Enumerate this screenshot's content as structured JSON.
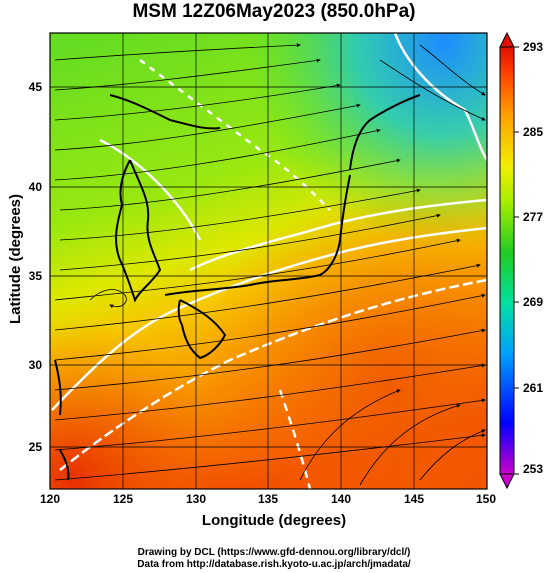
{
  "figure": {
    "title": "MSM 12Z06May2023 (850.0hPa)",
    "xlabel": "Longitude (degrees)",
    "ylabel": "Latitude  (degrees)",
    "credit_line1": "Drawing by DCL (https://www.gfd-dennou.org/library/dcl/)",
    "credit_line2": "Data from http://database.rish.kyoto-u.ac.jp/arch/jmadata/"
  },
  "axes": {
    "x_ticks": [
      "120",
      "125",
      "130",
      "135",
      "140",
      "145",
      "150"
    ],
    "y_ticks": [
      "25",
      "30",
      "35",
      "40",
      "45"
    ],
    "xlim": [
      120,
      150
    ],
    "ylim": [
      22.4,
      47.6
    ]
  },
  "colorbar": {
    "ticks": [
      "293",
      "285",
      "277",
      "269",
      "261",
      "253"
    ],
    "range": [
      253,
      293
    ],
    "colors": [
      "#cc00cc",
      "#0000ff",
      "#00aaff",
      "#00e0a0",
      "#22cc22",
      "#aaee00",
      "#f0f000",
      "#ffa000",
      "#ff4000",
      "#dd1000"
    ]
  },
  "legend_colors": {
    "coastline": "#000000",
    "isotherm_line": "#ffffff",
    "streamline": "#000000"
  }
}
